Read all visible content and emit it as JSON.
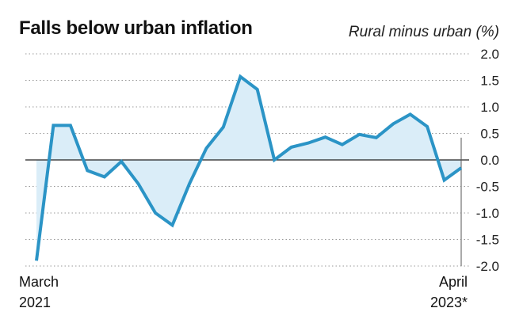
{
  "chart_data": {
    "type": "area",
    "title": "Falls below urban inflation",
    "ylabel": "Rural minus urban (%)",
    "ylim": [
      -2.0,
      2.0
    ],
    "yticks": [
      "2.0",
      "1.5",
      "1.0",
      "0.5",
      "0.0",
      "-0.5",
      "-1.0",
      "-1.5",
      "-2.0"
    ],
    "ytick_values": [
      2.0,
      1.5,
      1.0,
      0.5,
      0.0,
      -0.5,
      -1.0,
      -1.5,
      -2.0
    ],
    "x_start": {
      "line1": "March",
      "line2": "2021"
    },
    "x_end": {
      "line1": "April",
      "line2": "2023*"
    },
    "grid": true,
    "color": "#2b94c6",
    "fill": "#daedf8",
    "series": [
      {
        "values": [
          -1.9,
          0.65,
          0.65,
          -0.2,
          -0.32,
          -0.03,
          -0.45,
          -1.0,
          -1.23,
          -0.45,
          0.22,
          0.62,
          1.57,
          1.33,
          0.0,
          0.24,
          0.32,
          0.43,
          0.29,
          0.48,
          0.42,
          0.68,
          0.86,
          0.63,
          -0.38,
          -0.15
        ]
      }
    ]
  }
}
